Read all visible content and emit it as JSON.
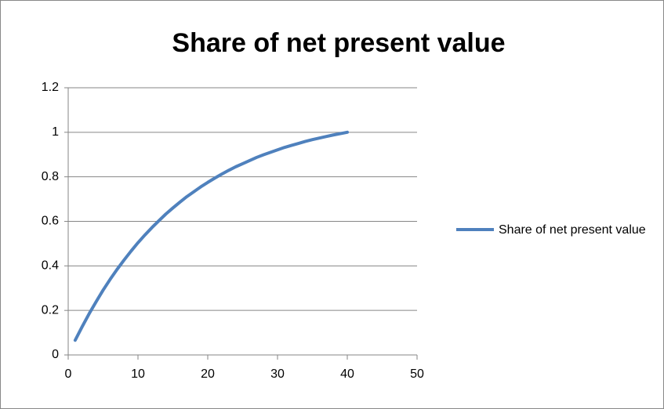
{
  "chart_data": {
    "type": "line",
    "title": "Share of net present value",
    "x": [
      1,
      2,
      3,
      4,
      5,
      6,
      7,
      8,
      9,
      10,
      11,
      12,
      13,
      14,
      15,
      16,
      17,
      18,
      19,
      20,
      21,
      22,
      23,
      24,
      25,
      26,
      27,
      28,
      29,
      30,
      31,
      32,
      33,
      34,
      35,
      36,
      37,
      38,
      39,
      40
    ],
    "series": [
      {
        "name": "Share of net present value",
        "color": "#4f81bd",
        "values": [
          0.066,
          0.127,
          0.185,
          0.239,
          0.291,
          0.339,
          0.384,
          0.426,
          0.466,
          0.504,
          0.539,
          0.572,
          0.603,
          0.633,
          0.66,
          0.686,
          0.711,
          0.733,
          0.755,
          0.775,
          0.794,
          0.812,
          0.829,
          0.845,
          0.859,
          0.873,
          0.887,
          0.899,
          0.91,
          0.921,
          0.932,
          0.941,
          0.95,
          0.959,
          0.967,
          0.974,
          0.981,
          0.988,
          0.994,
          1
        ]
      }
    ],
    "xlim": [
      0,
      50
    ],
    "xticks": [
      0,
      10,
      20,
      30,
      40,
      50
    ],
    "ylim": [
      0,
      1.2
    ],
    "yticks": [
      0,
      0.2,
      0.4,
      0.6,
      0.8,
      1,
      1.2
    ],
    "grid": true,
    "legend": "right"
  }
}
